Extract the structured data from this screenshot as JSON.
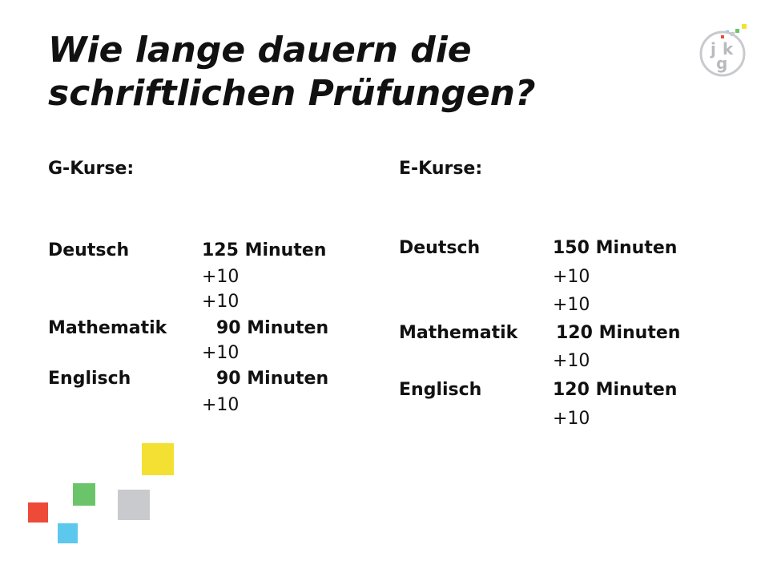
{
  "title": {
    "line1": "Wie lange dauern die",
    "line2": "schriftlichen Prüfungen?"
  },
  "logo": {
    "letters": [
      "j",
      "k",
      "g"
    ]
  },
  "g_kurse": {
    "heading": "G-Kurse:",
    "rows": [
      {
        "subject": "Deutsch",
        "duration": "125 Minuten",
        "extras": [
          "+10",
          "+10"
        ]
      },
      {
        "subject": "Mathematik",
        "duration": "90 Minuten",
        "extras": [
          "+10"
        ]
      },
      {
        "subject": "Englisch",
        "duration": "90 Minuten",
        "extras": [
          "+10"
        ]
      }
    ]
  },
  "e_kurse": {
    "heading": "E-Kurse:",
    "rows": [
      {
        "subject": "Deutsch",
        "duration": "150 Minuten",
        "extras": [
          "+10",
          "+10"
        ]
      },
      {
        "subject": "Mathematik",
        "duration": "120 Minuten",
        "extras": [
          "+10"
        ]
      },
      {
        "subject": "Englisch",
        "duration": "120 Minuten",
        "extras": [
          "+10"
        ]
      }
    ]
  },
  "colors": {
    "yellow": "#f4e033",
    "green": "#6cc46a",
    "grey": "#c8cacd",
    "red": "#ee4a3a",
    "cyan": "#5cc8ee"
  }
}
